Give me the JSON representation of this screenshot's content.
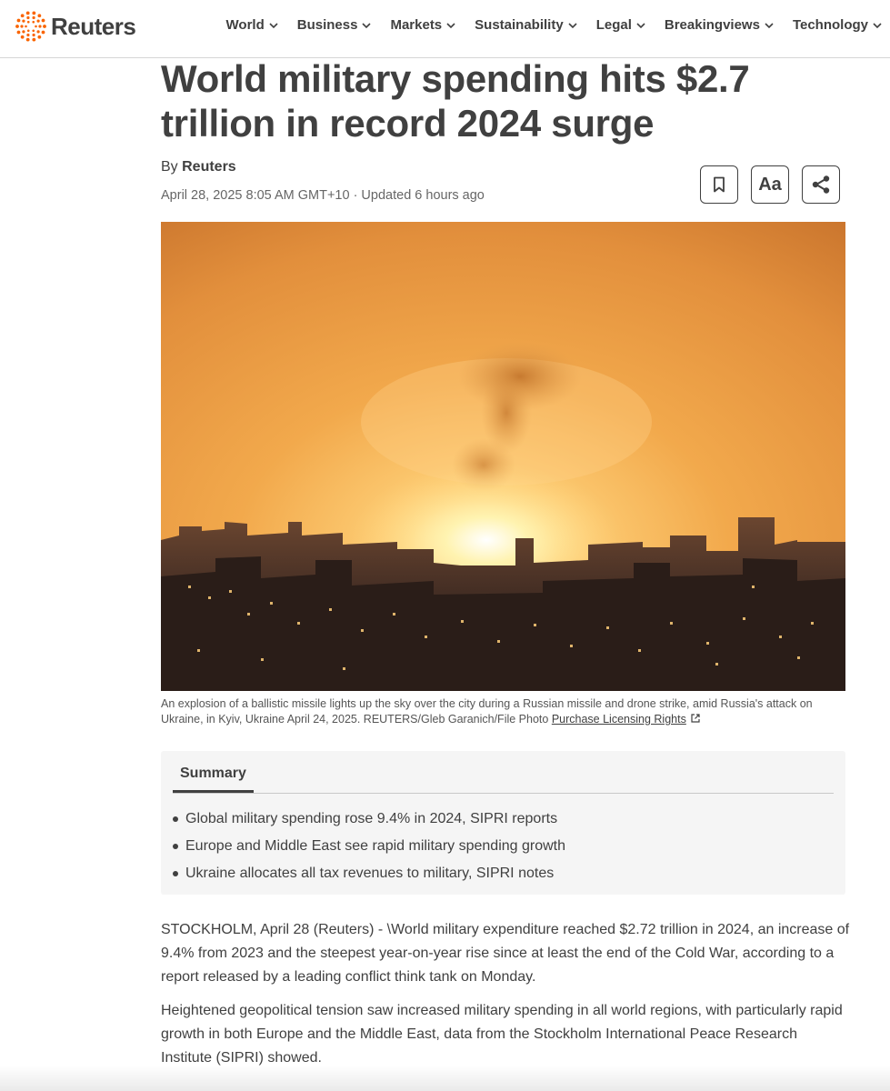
{
  "brand": {
    "name": "Reuters",
    "accent": "#fa6400"
  },
  "nav": [
    {
      "label": "World"
    },
    {
      "label": "Business"
    },
    {
      "label": "Markets"
    },
    {
      "label": "Sustainability"
    },
    {
      "label": "Legal"
    },
    {
      "label": "Breakingviews"
    },
    {
      "label": "Technology"
    }
  ],
  "article": {
    "headline": "World military spending hits $2.7 trillion in record 2024 surge",
    "byline_prefix": "By",
    "author": "Reuters",
    "dateline": "April 28, 2025 8:05 AM GMT+10 · Updated 6 hours ago",
    "tools": {
      "bookmark_icon": "bookmark-icon",
      "text_size_label": "Aa",
      "share_icon": "share-icon"
    },
    "photo": {
      "caption": "An explosion of a ballistic missile lights up the sky over the city during a Russian missile and drone strike, amid Russia's attack on Ukraine, in Kyiv, Ukraine April 24, 2025. REUTERS/Gleb Garanich/File Photo",
      "license_link": "Purchase Licensing Rights"
    },
    "summary": {
      "tab_label": "Summary",
      "points": [
        "Global military spending rose 9.4% in 2024, SIPRI reports",
        "Europe and Middle East see rapid military spending growth",
        "Ukraine allocates all tax revenues to military, SIPRI notes"
      ]
    },
    "paragraphs": [
      "STOCKHOLM, April 28 (Reuters) - \\World military expenditure reached $2.72 trillion in 2024, an increase of 9.4% from 2023 and the steepest year-on-year rise since at least the end of the Cold War, according to a report released by a leading conflict think tank on Monday.",
      "Heightened geopolitical tension saw increased military spending in all world regions, with particularly rapid growth in both Europe and the Middle East, data from the Stockholm International Peace Research Institute (SIPRI) showed."
    ]
  }
}
